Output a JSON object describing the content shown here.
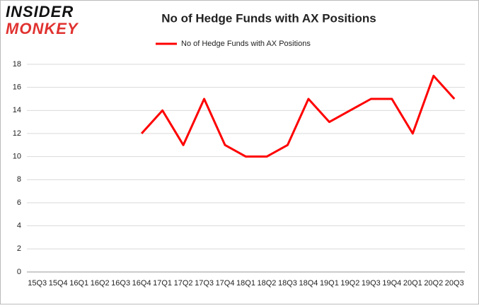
{
  "logo": {
    "line1": "INSIDER",
    "line2": "MONKEY"
  },
  "chart_data": {
    "type": "line",
    "title": "No of Hedge Funds with AX Positions",
    "categories": [
      "15Q3",
      "15Q4",
      "16Q1",
      "16Q2",
      "16Q3",
      "16Q4",
      "17Q1",
      "17Q2",
      "17Q3",
      "17Q4",
      "18Q1",
      "18Q2",
      "18Q3",
      "18Q4",
      "19Q1",
      "19Q2",
      "19Q3",
      "19Q4",
      "20Q1",
      "20Q2",
      "20Q3"
    ],
    "series": [
      {
        "name": "No of Hedge Funds with AX Positions",
        "color": "#ff0000",
        "values": [
          null,
          null,
          null,
          null,
          null,
          12,
          14,
          11,
          15,
          11,
          10,
          10,
          11,
          15,
          13,
          14,
          15,
          15,
          12,
          17,
          15
        ]
      }
    ],
    "ylim": [
      0,
      18
    ],
    "yticks": [
      0,
      2,
      4,
      6,
      8,
      10,
      12,
      14,
      16,
      18
    ],
    "grid": true,
    "legend": "top"
  }
}
